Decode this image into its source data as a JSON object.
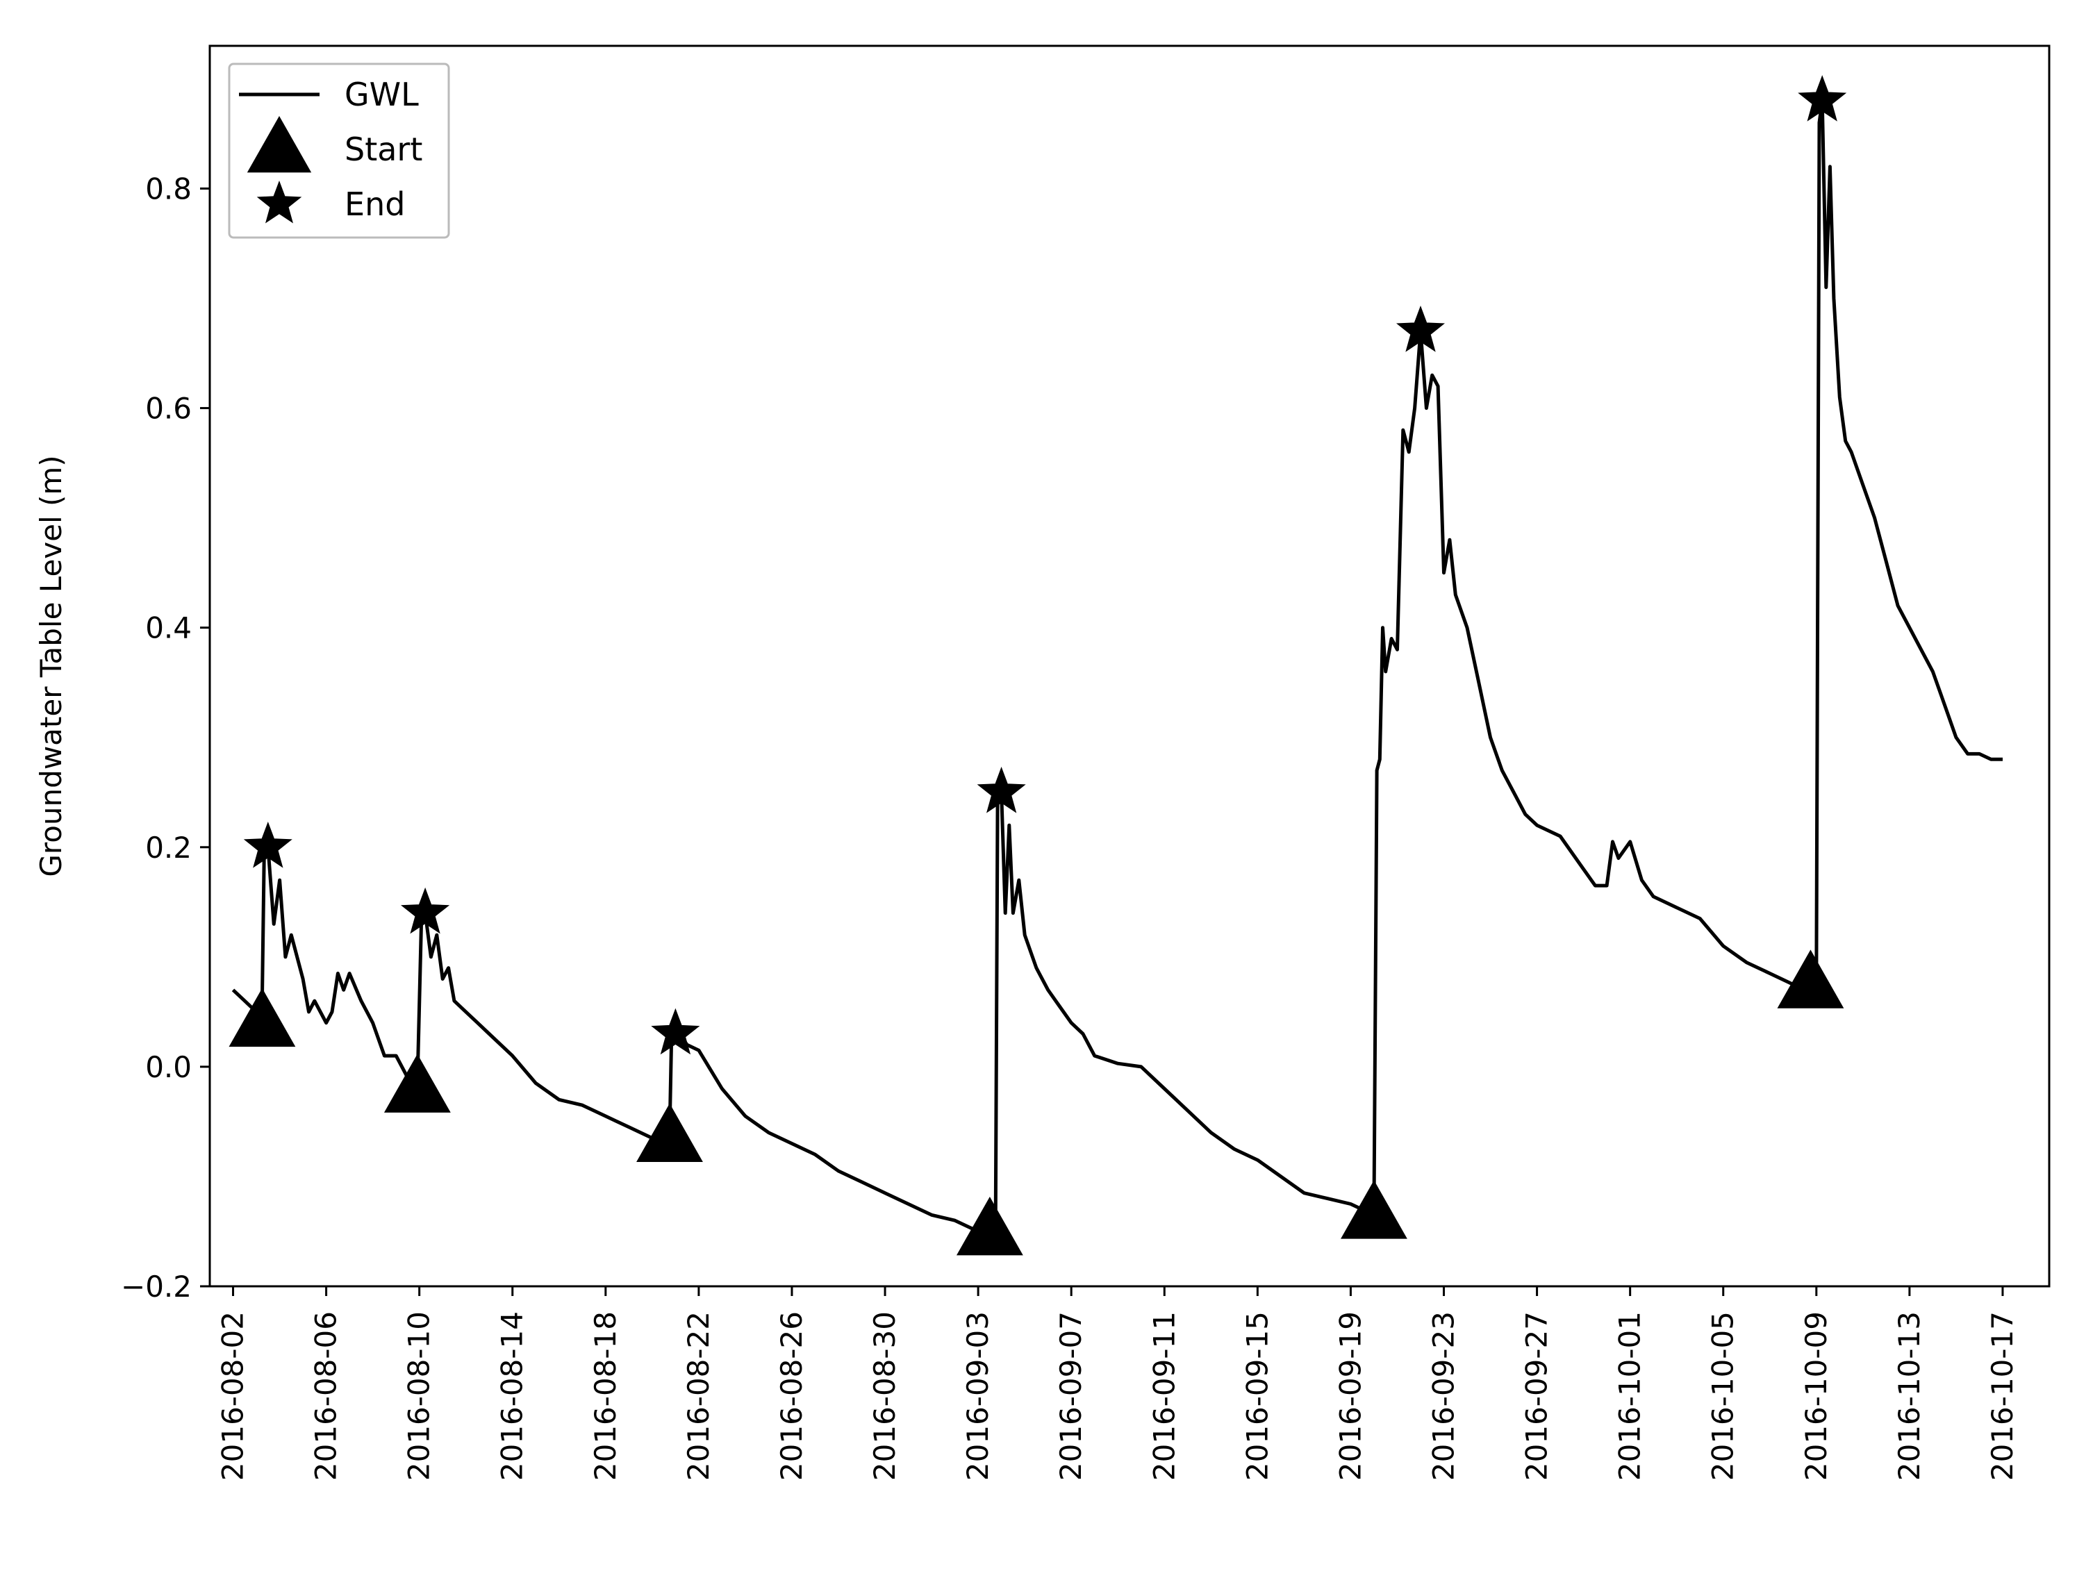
{
  "chart_data": {
    "type": "line",
    "title": "",
    "xlabel": "",
    "ylabel": "Groundwater Table Level (m)",
    "xlim": [
      "2016-08-01",
      "2016-10-19"
    ],
    "ylim": [
      -0.2,
      0.93
    ],
    "x_ticks": [
      "2016-08-02",
      "2016-08-06",
      "2016-08-10",
      "2016-08-14",
      "2016-08-18",
      "2016-08-22",
      "2016-08-26",
      "2016-08-30",
      "2016-09-03",
      "2016-09-07",
      "2016-09-11",
      "2016-09-15",
      "2016-09-19",
      "2016-09-23",
      "2016-09-27",
      "2016-10-01",
      "2016-10-05",
      "2016-10-09",
      "2016-10-13",
      "2016-10-17"
    ],
    "y_ticks": [
      {
        "value": -0.2,
        "label": "−0.2"
      },
      {
        "value": 0.0,
        "label": "0.0"
      },
      {
        "value": 0.2,
        "label": "0.2"
      },
      {
        "value": 0.4,
        "label": "0.4"
      },
      {
        "value": 0.6,
        "label": "0.6"
      },
      {
        "value": 0.8,
        "label": "0.8"
      }
    ],
    "grid": false,
    "legend": {
      "placement": "upper-left",
      "entries": [
        "GWL",
        "Start",
        "End"
      ]
    },
    "series": [
      {
        "name": "GWL",
        "style": "line",
        "color": "#000000",
        "points": [
          [
            "2016-08-02T00:00",
            0.07
          ],
          [
            "2016-08-02T12:00",
            0.06
          ],
          [
            "2016-08-03T00:00",
            0.05
          ],
          [
            "2016-08-03T06:00",
            0.06
          ],
          [
            "2016-08-03T08:00",
            0.19
          ],
          [
            "2016-08-03T12:00",
            0.2
          ],
          [
            "2016-08-03T18:00",
            0.13
          ],
          [
            "2016-08-04T00:00",
            0.17
          ],
          [
            "2016-08-04T06:00",
            0.1
          ],
          [
            "2016-08-04T12:00",
            0.12
          ],
          [
            "2016-08-05T00:00",
            0.08
          ],
          [
            "2016-08-05T06:00",
            0.05
          ],
          [
            "2016-08-05T12:00",
            0.06
          ],
          [
            "2016-08-06T00:00",
            0.04
          ],
          [
            "2016-08-06T06:00",
            0.05
          ],
          [
            "2016-08-06T12:00",
            0.085
          ],
          [
            "2016-08-06T18:00",
            0.07
          ],
          [
            "2016-08-07T00:00",
            0.085
          ],
          [
            "2016-08-07T12:00",
            0.06
          ],
          [
            "2016-08-08T00:00",
            0.04
          ],
          [
            "2016-08-08T12:00",
            0.01
          ],
          [
            "2016-08-09T00:00",
            0.01
          ],
          [
            "2016-08-09T12:00",
            -0.01
          ],
          [
            "2016-08-09T22:00",
            -0.015
          ],
          [
            "2016-08-10T02:00",
            0.13
          ],
          [
            "2016-08-10T06:00",
            0.14
          ],
          [
            "2016-08-10T12:00",
            0.1
          ],
          [
            "2016-08-10T18:00",
            0.12
          ],
          [
            "2016-08-11T00:00",
            0.08
          ],
          [
            "2016-08-11T06:00",
            0.09
          ],
          [
            "2016-08-11T12:00",
            0.06
          ],
          [
            "2016-08-12T00:00",
            0.05
          ],
          [
            "2016-08-12T12:00",
            0.04
          ],
          [
            "2016-08-13T00:00",
            0.03
          ],
          [
            "2016-08-14T00:00",
            0.01
          ],
          [
            "2016-08-15T00:00",
            -0.015
          ],
          [
            "2016-08-16T00:00",
            -0.03
          ],
          [
            "2016-08-17T00:00",
            -0.035
          ],
          [
            "2016-08-18T00:00",
            -0.045
          ],
          [
            "2016-08-19T00:00",
            -0.055
          ],
          [
            "2016-08-20T00:00",
            -0.065
          ],
          [
            "2016-08-20T18:00",
            -0.06
          ],
          [
            "2016-08-20T20:00",
            0.03
          ],
          [
            "2016-08-21T00:00",
            0.035
          ],
          [
            "2016-08-21T12:00",
            0.02
          ],
          [
            "2016-08-22T00:00",
            0.015
          ],
          [
            "2016-08-23T00:00",
            -0.02
          ],
          [
            "2016-08-24T00:00",
            -0.045
          ],
          [
            "2016-08-25T00:00",
            -0.06
          ],
          [
            "2016-08-26T00:00",
            -0.07
          ],
          [
            "2016-08-27T00:00",
            -0.08
          ],
          [
            "2016-08-28T00:00",
            -0.095
          ],
          [
            "2016-08-29T00:00",
            -0.105
          ],
          [
            "2016-08-30T00:00",
            -0.115
          ],
          [
            "2016-08-31T00:00",
            -0.125
          ],
          [
            "2016-09-01T00:00",
            -0.135
          ],
          [
            "2016-09-02T00:00",
            -0.14
          ],
          [
            "2016-09-03T00:00",
            -0.15
          ],
          [
            "2016-09-03T12:00",
            -0.15
          ],
          [
            "2016-09-03T18:00",
            -0.13
          ],
          [
            "2016-09-03T20:00",
            0.24
          ],
          [
            "2016-09-04T00:00",
            0.25
          ],
          [
            "2016-09-04T04:00",
            0.14
          ],
          [
            "2016-09-04T08:00",
            0.22
          ],
          [
            "2016-09-04T12:00",
            0.14
          ],
          [
            "2016-09-04T18:00",
            0.17
          ],
          [
            "2016-09-05T00:00",
            0.12
          ],
          [
            "2016-09-05T12:00",
            0.09
          ],
          [
            "2016-09-06T00:00",
            0.07
          ],
          [
            "2016-09-06T12:00",
            0.055
          ],
          [
            "2016-09-07T00:00",
            0.04
          ],
          [
            "2016-09-07T12:00",
            0.03
          ],
          [
            "2016-09-08T00:00",
            0.01
          ],
          [
            "2016-09-09T00:00",
            0.003
          ],
          [
            "2016-09-10T00:00",
            0.0
          ],
          [
            "2016-09-11T00:00",
            -0.02
          ],
          [
            "2016-09-12T00:00",
            -0.04
          ],
          [
            "2016-09-13T00:00",
            -0.06
          ],
          [
            "2016-09-14T00:00",
            -0.075
          ],
          [
            "2016-09-15T00:00",
            -0.085
          ],
          [
            "2016-09-16T00:00",
            -0.1
          ],
          [
            "2016-09-17T00:00",
            -0.115
          ],
          [
            "2016-09-18T00:00",
            -0.12
          ],
          [
            "2016-09-19T00:00",
            -0.125
          ],
          [
            "2016-09-20T00:00",
            -0.135
          ],
          [
            "2016-09-20T03:00",
            0.27
          ],
          [
            "2016-09-20T06:00",
            0.28
          ],
          [
            "2016-09-20T09:00",
            0.4
          ],
          [
            "2016-09-20T12:00",
            0.36
          ],
          [
            "2016-09-20T18:00",
            0.39
          ],
          [
            "2016-09-21T00:00",
            0.38
          ],
          [
            "2016-09-21T06:00",
            0.58
          ],
          [
            "2016-09-21T12:00",
            0.56
          ],
          [
            "2016-09-21T18:00",
            0.6
          ],
          [
            "2016-09-22T00:00",
            0.67
          ],
          [
            "2016-09-22T06:00",
            0.6
          ],
          [
            "2016-09-22T12:00",
            0.63
          ],
          [
            "2016-09-22T18:00",
            0.62
          ],
          [
            "2016-09-23T00:00",
            0.45
          ],
          [
            "2016-09-23T06:00",
            0.48
          ],
          [
            "2016-09-23T12:00",
            0.43
          ],
          [
            "2016-09-24T00:00",
            0.4
          ],
          [
            "2016-09-24T12:00",
            0.35
          ],
          [
            "2016-09-25T00:00",
            0.3
          ],
          [
            "2016-09-25T12:00",
            0.27
          ],
          [
            "2016-09-26T00:00",
            0.25
          ],
          [
            "2016-09-26T12:00",
            0.23
          ],
          [
            "2016-09-27T00:00",
            0.22
          ],
          [
            "2016-09-28T00:00",
            0.21
          ],
          [
            "2016-09-29T00:00",
            0.18
          ],
          [
            "2016-09-29T12:00",
            0.165
          ],
          [
            "2016-09-30T00:00",
            0.165
          ],
          [
            "2016-09-30T06:00",
            0.205
          ],
          [
            "2016-09-30T12:00",
            0.19
          ],
          [
            "2016-10-01T00:00",
            0.205
          ],
          [
            "2016-10-01T12:00",
            0.17
          ],
          [
            "2016-10-02T00:00",
            0.155
          ],
          [
            "2016-10-03T00:00",
            0.145
          ],
          [
            "2016-10-04T00:00",
            0.135
          ],
          [
            "2016-10-05T00:00",
            0.11
          ],
          [
            "2016-10-06T00:00",
            0.095
          ],
          [
            "2016-10-07T00:00",
            0.085
          ],
          [
            "2016-10-08T00:00",
            0.075
          ],
          [
            "2016-10-08T12:00",
            0.07
          ],
          [
            "2016-10-09T00:00",
            0.075
          ],
          [
            "2016-10-09T03:00",
            0.86
          ],
          [
            "2016-10-09T06:00",
            0.88
          ],
          [
            "2016-10-09T10:00",
            0.71
          ],
          [
            "2016-10-09T14:00",
            0.82
          ],
          [
            "2016-10-09T18:00",
            0.7
          ],
          [
            "2016-10-10T00:00",
            0.61
          ],
          [
            "2016-10-10T06:00",
            0.57
          ],
          [
            "2016-10-10T12:00",
            0.56
          ],
          [
            "2016-10-11T00:00",
            0.53
          ],
          [
            "2016-10-11T12:00",
            0.5
          ],
          [
            "2016-10-12T00:00",
            0.46
          ],
          [
            "2016-10-12T12:00",
            0.42
          ],
          [
            "2016-10-13T00:00",
            0.4
          ],
          [
            "2016-10-13T12:00",
            0.38
          ],
          [
            "2016-10-14T00:00",
            0.36
          ],
          [
            "2016-10-14T12:00",
            0.33
          ],
          [
            "2016-10-15T00:00",
            0.3
          ],
          [
            "2016-10-15T12:00",
            0.285
          ],
          [
            "2016-10-16T00:00",
            0.285
          ],
          [
            "2016-10-16T12:00",
            0.28
          ],
          [
            "2016-10-17T00:00",
            0.28
          ]
        ]
      },
      {
        "name": "Start",
        "style": "marker",
        "marker": "triangle-up",
        "points": [
          [
            "2016-08-03T06:00",
            0.04
          ],
          [
            "2016-08-09T22:00",
            -0.02
          ],
          [
            "2016-08-20T18:00",
            -0.065
          ],
          [
            "2016-09-03T12:00",
            -0.15
          ],
          [
            "2016-09-20T00:00",
            -0.135
          ],
          [
            "2016-10-08T18:00",
            0.075
          ]
        ]
      },
      {
        "name": "End",
        "style": "marker",
        "marker": "star",
        "points": [
          [
            "2016-08-03T12:00",
            0.2
          ],
          [
            "2016-08-10T06:00",
            0.14
          ],
          [
            "2016-08-21T00:00",
            0.03
          ],
          [
            "2016-09-04T00:00",
            0.25
          ],
          [
            "2016-09-22T00:00",
            0.67
          ],
          [
            "2016-10-09T06:00",
            0.88
          ]
        ]
      }
    ]
  }
}
